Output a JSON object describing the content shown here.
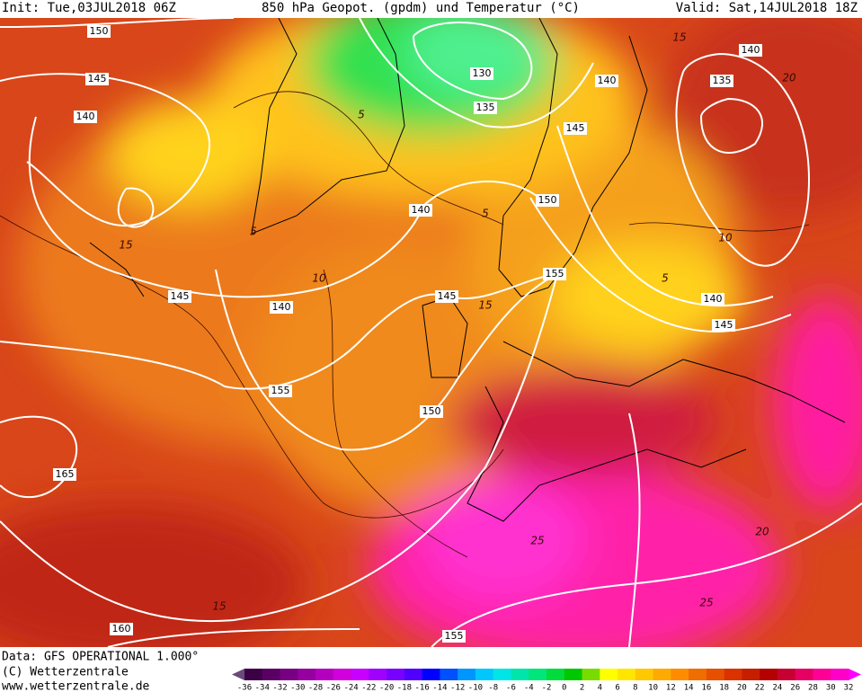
{
  "header": {
    "init": "Init: Tue,03JUL2018 06Z",
    "title": "850 hPa Geopot. (gpdm) und Temperatur (°C)",
    "valid": "Valid: Sat,14JUL2018 18Z"
  },
  "footer": {
    "data": "Data: GFS OPERATIONAL 1.000°",
    "copyright": "(C) Wetterzentrale",
    "url": "www.wetterzentrale.de"
  },
  "geopotential_labels": [
    150,
    145,
    140,
    130,
    135,
    140,
    140,
    135,
    145,
    140,
    150,
    155,
    145,
    140,
    145,
    140,
    145,
    155,
    150,
    165,
    160,
    155
  ],
  "temperature_labels": [
    15,
    20,
    5,
    5,
    5,
    15,
    10,
    10,
    15,
    5,
    20,
    25,
    25,
    15
  ],
  "colorbar": {
    "labels": [
      -36,
      -34,
      -32,
      -30,
      -28,
      -26,
      -24,
      -22,
      -20,
      -18,
      -16,
      -14,
      -12,
      -10,
      -8,
      -6,
      -4,
      -2,
      0,
      2,
      4,
      6,
      8,
      10,
      12,
      14,
      16,
      18,
      20,
      22,
      24,
      26,
      28,
      30,
      32
    ],
    "colors": [
      "#3c0046",
      "#5a0064",
      "#780082",
      "#9600a0",
      "#b400be",
      "#d200dc",
      "#c800ff",
      "#a000ff",
      "#7800ff",
      "#5000ff",
      "#0000ff",
      "#0050ff",
      "#0096ff",
      "#00c8ff",
      "#00e6e6",
      "#00e6aa",
      "#00e678",
      "#00dc3c",
      "#00c800",
      "#78dc00",
      "#ffff00",
      "#ffe600",
      "#ffc800",
      "#ffaa00",
      "#ff8c00",
      "#f06e00",
      "#e65000",
      "#dc3200",
      "#c81e00",
      "#b40000",
      "#c80032",
      "#e60064",
      "#ff0096",
      "#ff00c8"
    ]
  }
}
